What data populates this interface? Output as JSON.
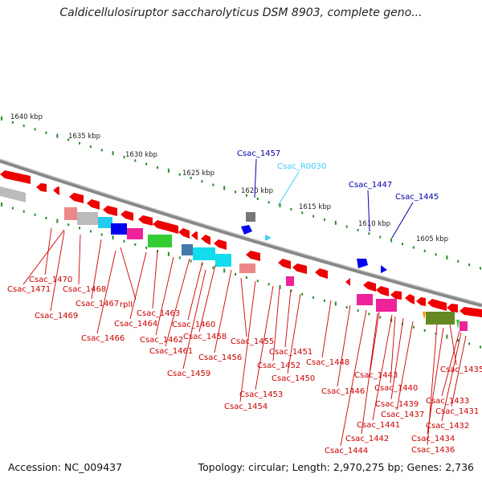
{
  "title": "Caldicellulosiruptor saccharolyticus DSM 8903, complete geno...",
  "accession": "Accession: NC_009437",
  "topology": "Topology: circular; Length: 2,970,275 bp; Genes: 2,736",
  "colors": {
    "cds": "#ee0000",
    "trna": "#44ccff",
    "label_blue": "#0000aa",
    "label_red": "#cc0000",
    "scale": "#2a8a2a",
    "backbone": "#888888"
  },
  "scale_labels": [
    "1640 kbp",
    "1635 kbp",
    "1630 kbp",
    "1625 kbp",
    "1620 kbp",
    "1615 kbp",
    "1610 kbp",
    "1605 kbp"
  ],
  "top_labels": [
    "Csac_1457",
    "Csac_R0030",
    "Csac_1447",
    "Csac_1445"
  ],
  "bottom_labels": [
    "Csac_1470",
    "Csac_1471",
    "Csac_1468",
    "Csac_1467",
    "rplI",
    "Csac_1469",
    "Csac_1466",
    "Csac_1463",
    "Csac_1464",
    "Csac_1462",
    "Csac_1461",
    "Csac_1460",
    "Csac_1458",
    "Csac_1459",
    "Csac_1456",
    "Csac_1455",
    "Csac_1451",
    "Csac_1452",
    "Csac_1450",
    "Csac_1453",
    "Csac_1454",
    "Csac_1448",
    "Csac_1446",
    "Csac_1443",
    "Csac_1440",
    "Csac_1439",
    "Csac_1437",
    "Csac_1441",
    "Csac_1442",
    "Csac_1444",
    "Csac_1435",
    "Csac_1433",
    "Csac_1431",
    "Csac_1432",
    "Csac_1434",
    "Csac_1436"
  ]
}
